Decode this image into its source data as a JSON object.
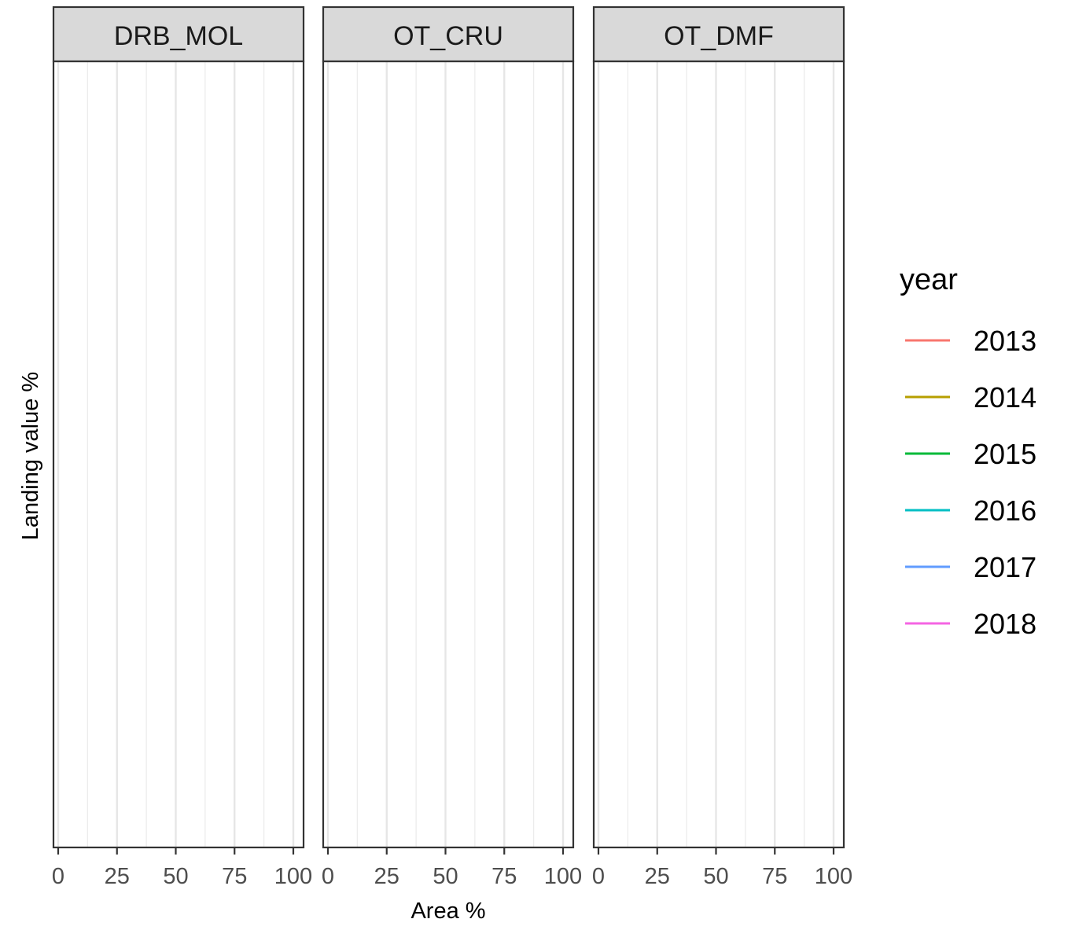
{
  "chart_data": {
    "type": "line",
    "facets": [
      "DRB_MOL",
      "OT_CRU",
      "OT_DMF"
    ],
    "xlabel": "Area %",
    "ylabel": "Landing value %",
    "xlim": [
      0,
      100
    ],
    "x_ticks": [
      0,
      25,
      50,
      75,
      100
    ],
    "x_minor_gridlines": [
      12.5,
      37.5,
      62.5,
      87.5
    ],
    "grid": true,
    "legend": {
      "title": "year",
      "position": "right",
      "entries": [
        {
          "label": "2013",
          "color": "#F8766D"
        },
        {
          "label": "2014",
          "color": "#B79F00"
        },
        {
          "label": "2015",
          "color": "#00BA38"
        },
        {
          "label": "2016",
          "color": "#00BFC4"
        },
        {
          "label": "2017",
          "color": "#619CFF"
        },
        {
          "label": "2018",
          "color": "#F564E3"
        }
      ]
    },
    "series": []
  }
}
